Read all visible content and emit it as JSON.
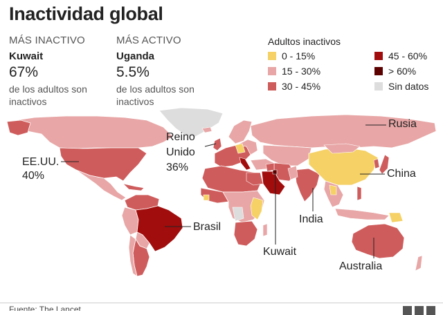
{
  "title": "Inactividad global",
  "most_inactive": {
    "caption": "MÁS INACTIVO",
    "country": "Kuwait",
    "value": "67%",
    "note": "de los adultos son inactivos"
  },
  "most_active": {
    "caption": "MÁS ACTIVO",
    "country": "Uganda",
    "value": "5.5%",
    "note": "de los adultos son inactivos"
  },
  "legend": {
    "title": "Adultos inactivos",
    "items": [
      {
        "label": "0 - 15%",
        "color": "#f5d166"
      },
      {
        "label": "15 - 30%",
        "color": "#e8a6a6"
      },
      {
        "label": "30 - 45%",
        "color": "#cf5c5c"
      },
      {
        "label": "45 - 60%",
        "color": "#a10d0d"
      },
      {
        "label": "> 60%",
        "color": "#5c0000"
      },
      {
        "label": "Sin datos",
        "color": "#dddddd"
      }
    ]
  },
  "callouts": {
    "usa": {
      "name": "EE.UU.",
      "value": "40%"
    },
    "uk_line1": "Reino",
    "uk_line2": "Unido",
    "uk_value": "36%",
    "russia": "Rusia",
    "china": "China",
    "india": "India",
    "brazil": "Brasil",
    "kuwait": "Kuwait",
    "australia": "Australia"
  },
  "footer": {
    "source": "Fuente: The Lancet"
  }
}
